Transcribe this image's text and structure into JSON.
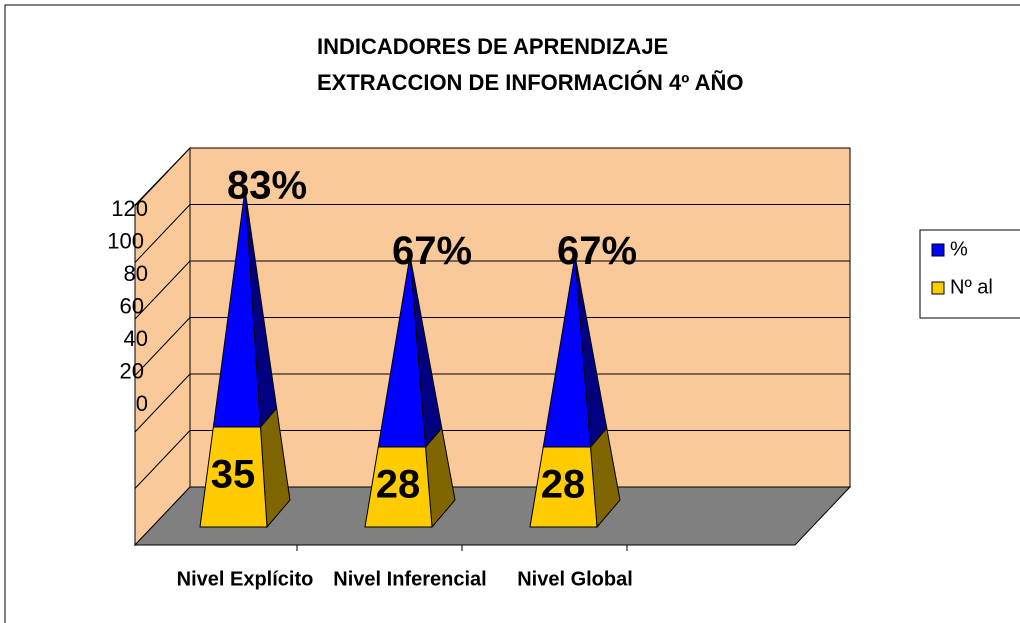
{
  "chart_data": {
    "type": "pyramid-stacked",
    "title": "INDICADORES DE APRENDIZAJE",
    "subtitle": "EXTRACCION DE INFORMACIÓN 4º AÑO",
    "categories": [
      "Nivel  Explícito",
      "Nivel Inferencial",
      "Nivel  Global"
    ],
    "series": [
      {
        "name": "Nº al",
        "color": "#ffcc00",
        "values": [
          35,
          28,
          28
        ]
      },
      {
        "name": "%",
        "color": "#0000ff",
        "values": [
          83,
          67,
          67
        ],
        "value_labels": [
          "83%",
          "67%",
          "67%"
        ]
      }
    ],
    "ylim": [
      0,
      120
    ],
    "yticks": [
      0,
      20,
      40,
      60,
      80,
      100,
      120
    ],
    "grid": true,
    "legend": "right"
  }
}
